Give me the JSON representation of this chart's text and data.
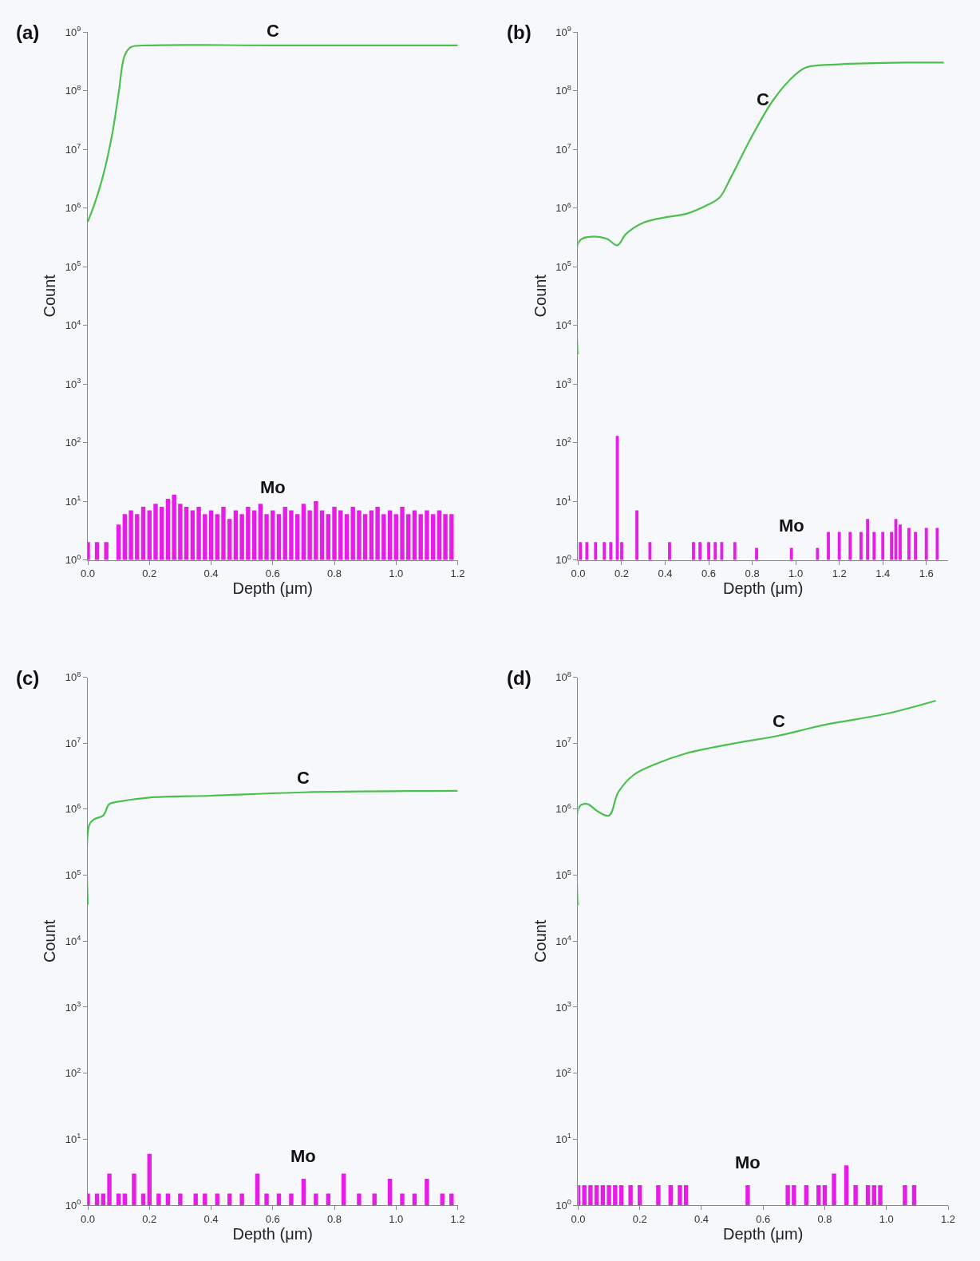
{
  "chart_data": [
    {
      "type": "line",
      "title": "(a)",
      "xlabel": "Depth (μm)",
      "ylabel": "Count",
      "log": "y",
      "grid": false,
      "xlim": [
        0,
        1.2
      ],
      "xticks": [
        {
          "value": 0,
          "label": "0.0"
        },
        {
          "value": 0.2,
          "label": "0.2"
        },
        {
          "value": 0.4,
          "label": "0.4"
        },
        {
          "value": 0.6,
          "label": "0.6"
        },
        {
          "value": 0.8,
          "label": "0.8"
        },
        {
          "value": 1.0,
          "label": "1.0"
        },
        {
          "value": 1.2,
          "label": "1.2"
        }
      ],
      "ylim": [
        1,
        1000000000
      ],
      "yticks": [
        {
          "value": 1,
          "label": "10$^{0}$"
        },
        {
          "value": 10,
          "label": "10$^{1}$"
        },
        {
          "value": 100,
          "label": "10$^{2}$"
        },
        {
          "value": 1000,
          "label": "10$^{3}$"
        },
        {
          "value": 10000,
          "label": "10$^{4}$"
        },
        {
          "value": 100000,
          "label": "10$^{5}$"
        },
        {
          "value": 1000000,
          "label": "10$^{6}$"
        },
        {
          "value": 10000000,
          "label": "10$^{7}$"
        },
        {
          "value": 100000000,
          "label": "10$^{8}$"
        },
        {
          "value": 1000000000,
          "label": "10$^{9}$"
        }
      ],
      "series": [
        {
          "color": "#4cc04c",
          "x": [
            0,
            0.02,
            0.05,
            0.08,
            0.1,
            0.12,
            0.14,
            0.2,
            0.6,
            1.2
          ],
          "values": [
            580000,
            1100000,
            3600000,
            19000000,
            90000000,
            400000000,
            550000000,
            590000000,
            590000000,
            590000000
          ]
        },
        {
          "type": "bar",
          "color": "#e81ce8",
          "x": [
            0.0,
            0.03,
            0.06,
            0.1,
            0.12,
            0.14,
            0.16,
            0.18,
            0.2,
            0.22,
            0.24,
            0.26,
            0.28,
            0.3,
            0.32,
            0.34,
            0.36,
            0.38,
            0.4,
            0.42,
            0.44,
            0.46,
            0.48,
            0.5,
            0.52,
            0.54,
            0.56,
            0.58,
            0.6,
            0.62,
            0.64,
            0.66,
            0.68,
            0.7,
            0.72,
            0.74,
            0.76,
            0.78,
            0.8,
            0.82,
            0.84,
            0.86,
            0.88,
            0.9,
            0.92,
            0.94,
            0.96,
            0.98,
            1.0,
            1.02,
            1.04,
            1.06,
            1.08,
            1.1,
            1.12,
            1.14,
            1.16,
            1.18
          ],
          "values": [
            2,
            2,
            2,
            4,
            6,
            7,
            6,
            8,
            7,
            9,
            8,
            11,
            13,
            9,
            8,
            7,
            8,
            6,
            7,
            6,
            8,
            5,
            7,
            6,
            8,
            7,
            9,
            6,
            7,
            6,
            8,
            7,
            6,
            9,
            7,
            10,
            7,
            6,
            8,
            7,
            6,
            8,
            7,
            6,
            7,
            8,
            6,
            7,
            6,
            8,
            6,
            7,
            6,
            7,
            6,
            7,
            6,
            6
          ]
        }
      ],
      "annotations": [
        {
          "text": "C",
          "x": 0.6,
          "y": 590000000
        },
        {
          "text": "Mo",
          "x": 0.6,
          "y": 7
        }
      ]
    },
    {
      "type": "line",
      "title": "(b)",
      "xlabel": "Depth (μm)",
      "ylabel": "Count",
      "log": "y",
      "grid": false,
      "xlim": [
        0,
        1.7
      ],
      "xticks": [
        {
          "value": 0,
          "label": "0.0"
        },
        {
          "value": 0.2,
          "label": "0.2"
        },
        {
          "value": 0.4,
          "label": "0.4"
        },
        {
          "value": 0.6,
          "label": "0.6"
        },
        {
          "value": 0.8,
          "label": "0.8"
        },
        {
          "value": 1.0,
          "label": "1.0"
        },
        {
          "value": 1.2,
          "label": "1.2"
        },
        {
          "value": 1.4,
          "label": "1.4"
        },
        {
          "value": 1.6,
          "label": "1.6"
        }
      ],
      "ylim": [
        1,
        1000000000
      ],
      "yticks": [
        {
          "value": 1,
          "label": "10$^{0}$"
        },
        {
          "value": 10,
          "label": "10$^{1}$"
        },
        {
          "value": 100,
          "label": "10$^{2}$"
        },
        {
          "value": 1000,
          "label": "10$^{3}$"
        },
        {
          "value": 10000,
          "label": "10$^{4}$"
        },
        {
          "value": 100000,
          "label": "10$^{5}$"
        },
        {
          "value": 1000000,
          "label": "10$^{6}$"
        },
        {
          "value": 10000000,
          "label": "10$^{7}$"
        },
        {
          "value": 100000000,
          "label": "10$^{8}$"
        },
        {
          "value": 1000000000,
          "label": "10$^{9}$"
        }
      ],
      "series": [
        {
          "color": "#4cc04c",
          "x": [
            0,
            0.005,
            0.05,
            0.13,
            0.18,
            0.22,
            0.3,
            0.4,
            0.5,
            0.6,
            0.65,
            0.7,
            0.8,
            0.9,
            1.0,
            1.05,
            1.2,
            1.5,
            1.68
          ],
          "values": [
            3200,
            270000,
            320000,
            300000,
            230000,
            360000,
            560000,
            690000,
            800000,
            1150000,
            1500000,
            3200000,
            17000000,
            72000000,
            190000000,
            250000000,
            280000000,
            300000000,
            300000000
          ]
        },
        {
          "type": "bar",
          "color": "#e81ce8",
          "x": [
            0.01,
            0.04,
            0.08,
            0.12,
            0.15,
            0.18,
            0.2,
            0.27,
            0.33,
            0.42,
            0.53,
            0.56,
            0.6,
            0.63,
            0.66,
            0.72,
            0.82,
            0.98,
            1.1,
            1.15,
            1.2,
            1.25,
            1.3,
            1.33,
            1.36,
            1.4,
            1.44,
            1.46,
            1.48,
            1.52,
            1.55,
            1.6,
            1.65
          ],
          "values": [
            2,
            2,
            2,
            2,
            2,
            130,
            2,
            7,
            2,
            2,
            2,
            2,
            2,
            2,
            2,
            2,
            1.6,
            1.6,
            1.6,
            3,
            3,
            3,
            3,
            5,
            3,
            3,
            3,
            5,
            4,
            3.5,
            3,
            3.5,
            3.5
          ]
        }
      ],
      "annotations": [
        {
          "text": "C",
          "x": 0.85,
          "y": 40000000
        },
        {
          "text": "Mo",
          "x": 0.98,
          "y": 1.6
        }
      ]
    },
    {
      "type": "line",
      "title": "(c)",
      "xlabel": "Depth (μm)",
      "ylabel": "Count",
      "log": "y",
      "grid": false,
      "xlim": [
        0,
        1.2
      ],
      "xticks": [
        {
          "value": 0,
          "label": "0.0"
        },
        {
          "value": 0.2,
          "label": "0.2"
        },
        {
          "value": 0.4,
          "label": "0.4"
        },
        {
          "value": 0.6,
          "label": "0.6"
        },
        {
          "value": 0.8,
          "label": "0.8"
        },
        {
          "value": 1.0,
          "label": "1.0"
        },
        {
          "value": 1.2,
          "label": "1.2"
        }
      ],
      "ylim": [
        1,
        100000000
      ],
      "yticks": [
        {
          "value": 1,
          "label": "10$^{0}$"
        },
        {
          "value": 10,
          "label": "10$^{1}$"
        },
        {
          "value": 100,
          "label": "10$^{2}$"
        },
        {
          "value": 1000,
          "label": "10$^{3}$"
        },
        {
          "value": 10000,
          "label": "10$^{4}$"
        },
        {
          "value": 100000,
          "label": "10$^{5}$"
        },
        {
          "value": 1000000,
          "label": "10$^{6}$"
        },
        {
          "value": 10000000,
          "label": "10$^{7}$"
        },
        {
          "value": 100000000,
          "label": "10$^{8}$"
        }
      ],
      "series": [
        {
          "color": "#4cc04c",
          "x": [
            0,
            0.005,
            0.02,
            0.05,
            0.07,
            0.1,
            0.2,
            0.4,
            0.7,
            1.2
          ],
          "values": [
            36000,
            580000,
            700000,
            800000,
            1200000,
            1300000,
            1500000,
            1600000,
            1800000,
            1900000
          ]
        },
        {
          "type": "bar",
          "color": "#e81ce8",
          "x": [
            0.0,
            0.03,
            0.05,
            0.07,
            0.1,
            0.12,
            0.15,
            0.18,
            0.2,
            0.23,
            0.26,
            0.3,
            0.35,
            0.38,
            0.42,
            0.46,
            0.5,
            0.55,
            0.58,
            0.62,
            0.66,
            0.7,
            0.74,
            0.78,
            0.83,
            0.88,
            0.93,
            0.98,
            1.02,
            1.06,
            1.1,
            1.15,
            1.18
          ],
          "values": [
            1.5,
            1.5,
            1.5,
            3,
            1.5,
            1.5,
            3,
            1.5,
            6,
            1.5,
            1.5,
            1.5,
            1.5,
            1.5,
            1.5,
            1.5,
            1.5,
            3,
            1.5,
            1.5,
            1.5,
            2.5,
            1.5,
            1.5,
            3,
            1.5,
            1.5,
            2.5,
            1.5,
            1.5,
            2.5,
            1.5,
            1.5
          ]
        }
      ],
      "annotations": [
        {
          "text": "C",
          "x": 0.7,
          "y": 1800000
        },
        {
          "text": "Mo",
          "x": 0.7,
          "y": 2.5
        }
      ]
    },
    {
      "type": "line",
      "title": "(d)",
      "xlabel": "Depth (μm)",
      "ylabel": "Count",
      "log": "y",
      "grid": false,
      "xlim": [
        0,
        1.2
      ],
      "xticks": [
        {
          "value": 0,
          "label": "0.0"
        },
        {
          "value": 0.2,
          "label": "0.2"
        },
        {
          "value": 0.4,
          "label": "0.4"
        },
        {
          "value": 0.6,
          "label": "0.6"
        },
        {
          "value": 0.8,
          "label": "0.8"
        },
        {
          "value": 1.0,
          "label": "1.0"
        },
        {
          "value": 1.2,
          "label": "1.2"
        }
      ],
      "ylim": [
        1,
        100000000
      ],
      "yticks": [
        {
          "value": 1,
          "label": "10$^{0}$"
        },
        {
          "value": 10,
          "label": "10$^{1}$"
        },
        {
          "value": 100,
          "label": "10$^{2}$"
        },
        {
          "value": 1000,
          "label": "10$^{3}$"
        },
        {
          "value": 10000,
          "label": "10$^{4}$"
        },
        {
          "value": 100000,
          "label": "10$^{5}$"
        },
        {
          "value": 1000000,
          "label": "10$^{6}$"
        },
        {
          "value": 10000000,
          "label": "10$^{7}$"
        },
        {
          "value": 100000000,
          "label": "10$^{8}$"
        }
      ],
      "series": [
        {
          "color": "#4cc04c",
          "x": [
            0,
            0.005,
            0.03,
            0.06,
            0.1,
            0.13,
            0.18,
            0.25,
            0.35,
            0.5,
            0.65,
            0.8,
            1.0,
            1.16
          ],
          "values": [
            35000,
            1100000,
            1200000,
            950000,
            800000,
            1800000,
            3300000,
            4800000,
            7000000,
            9800000,
            13000000,
            19000000,
            28000000,
            44000000
          ]
        },
        {
          "type": "bar",
          "color": "#e81ce8",
          "x": [
            0.0,
            0.02,
            0.04,
            0.06,
            0.08,
            0.1,
            0.12,
            0.14,
            0.17,
            0.2,
            0.26,
            0.3,
            0.33,
            0.35,
            0.55,
            0.68,
            0.7,
            0.74,
            0.78,
            0.8,
            0.83,
            0.87,
            0.9,
            0.94,
            0.96,
            0.98,
            1.06,
            1.09
          ],
          "values": [
            2,
            2,
            2,
            2,
            2,
            2,
            2,
            2,
            2,
            2,
            2,
            2,
            2,
            2,
            2,
            2,
            2,
            2,
            2,
            2,
            3,
            4,
            2,
            2,
            2,
            2,
            2,
            2
          ]
        }
      ],
      "annotations": [
        {
          "text": "C",
          "x": 0.65,
          "y": 13000000
        },
        {
          "text": "Mo",
          "x": 0.55,
          "y": 2
        }
      ]
    }
  ]
}
